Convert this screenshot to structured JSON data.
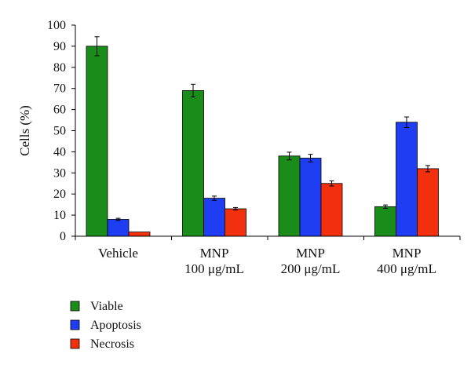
{
  "chart_data": {
    "type": "bar",
    "title": "",
    "xlabel": "",
    "ylabel": "Cells (%)",
    "ylim": [
      0,
      100
    ],
    "yticks": [
      0,
      10,
      20,
      30,
      40,
      50,
      60,
      70,
      80,
      90,
      100
    ],
    "grid": false,
    "legend_position": "bottom-left",
    "categories": [
      [
        "Vehicle"
      ],
      [
        "MNP",
        "100 μg/mL"
      ],
      [
        "MNP",
        "200 μg/mL"
      ],
      [
        "MNP",
        "400 μg/mL"
      ]
    ],
    "series": [
      {
        "name": "Viable",
        "color": "#1a8c1a",
        "values": [
          90,
          69,
          38,
          14
        ],
        "errors": [
          4.5,
          3,
          1.8,
          0.8
        ]
      },
      {
        "name": "Apoptosis",
        "color": "#1f3df2",
        "values": [
          8,
          18,
          37,
          54
        ],
        "errors": [
          0.5,
          1,
          1.8,
          2.5
        ]
      },
      {
        "name": "Necrosis",
        "color": "#f2300d",
        "values": [
          2,
          13,
          25,
          32
        ],
        "errors": [
          0,
          0.6,
          1.2,
          1.5
        ]
      }
    ]
  }
}
